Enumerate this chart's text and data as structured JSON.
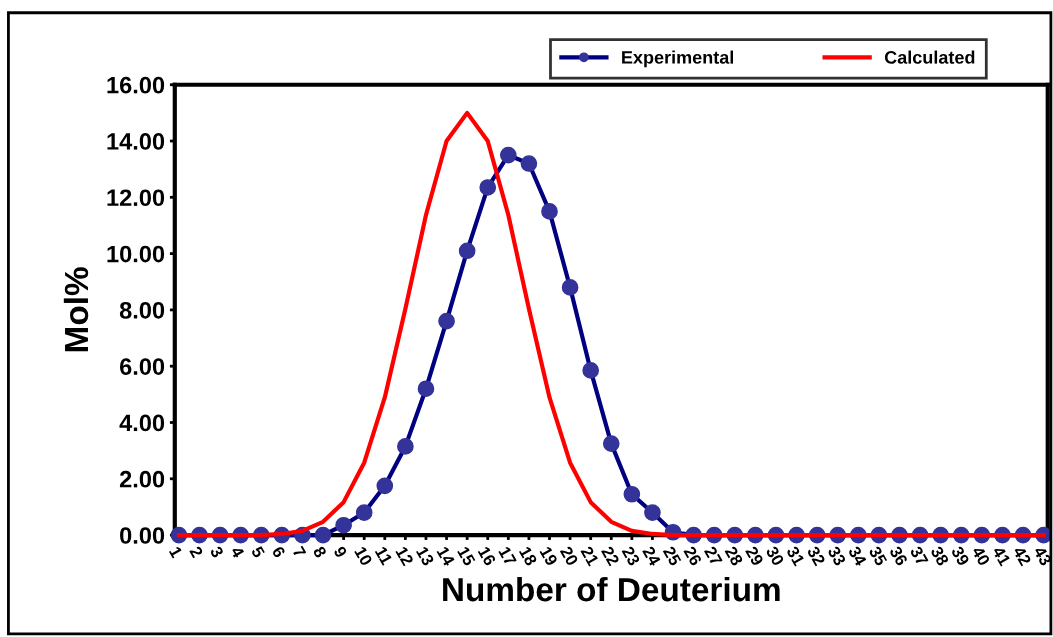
{
  "chart_data": {
    "type": "line",
    "xlabel": "Number of Deuterium",
    "ylabel": "Mol%",
    "categories": [
      "1",
      "2",
      "3",
      "4",
      "5",
      "6",
      "7",
      "8",
      "9",
      "10",
      "11",
      "12",
      "13",
      "14",
      "15",
      "16",
      "17",
      "18",
      "19",
      "20",
      "21",
      "22",
      "23",
      "24",
      "25",
      "26",
      "27",
      "28",
      "29",
      "30",
      "31",
      "32",
      "33",
      "34",
      "35",
      "36",
      "37",
      "38",
      "39",
      "40",
      "41",
      "42",
      "43"
    ],
    "series": [
      {
        "name": "Experimental",
        "color": "#000080",
        "marker": "circle",
        "values": [
          0,
          0,
          0,
          0,
          0,
          0,
          0,
          0,
          0.35,
          0.8,
          1.75,
          3.15,
          5.2,
          7.6,
          10.1,
          12.35,
          13.5,
          13.2,
          11.5,
          8.8,
          5.85,
          3.25,
          1.45,
          0.8,
          0.1,
          0,
          0,
          0,
          0,
          0,
          0,
          0,
          0,
          0,
          0,
          0,
          0,
          0,
          0,
          0,
          0,
          0,
          0
        ]
      },
      {
        "name": "Calculated",
        "color": "#ff0000",
        "marker": "none",
        "values": [
          0,
          0,
          0,
          0,
          0,
          0.04,
          0.15,
          0.47,
          1.17,
          2.57,
          4.89,
          8.04,
          11.37,
          14.0,
          15.0,
          14.0,
          11.37,
          8.04,
          4.89,
          2.57,
          1.17,
          0.47,
          0.15,
          0.04,
          0,
          0,
          0,
          0,
          0,
          0,
          0,
          0,
          0,
          0,
          0,
          0,
          0,
          0,
          0,
          0,
          0,
          0,
          0
        ]
      }
    ],
    "ylim": [
      0,
      16
    ],
    "yticks": [
      {
        "value": 0,
        "label": "0.00"
      },
      {
        "value": 2,
        "label": "2.00"
      },
      {
        "value": 4,
        "label": "4.00"
      },
      {
        "value": 6,
        "label": "6.00"
      },
      {
        "value": 8,
        "label": "8.00"
      },
      {
        "value": 10,
        "label": "10.00"
      },
      {
        "value": 12,
        "label": "12.00"
      },
      {
        "value": 14,
        "label": "14.00"
      },
      {
        "value": 16,
        "label": "16.00"
      }
    ],
    "grid": false,
    "legend": "top"
  }
}
